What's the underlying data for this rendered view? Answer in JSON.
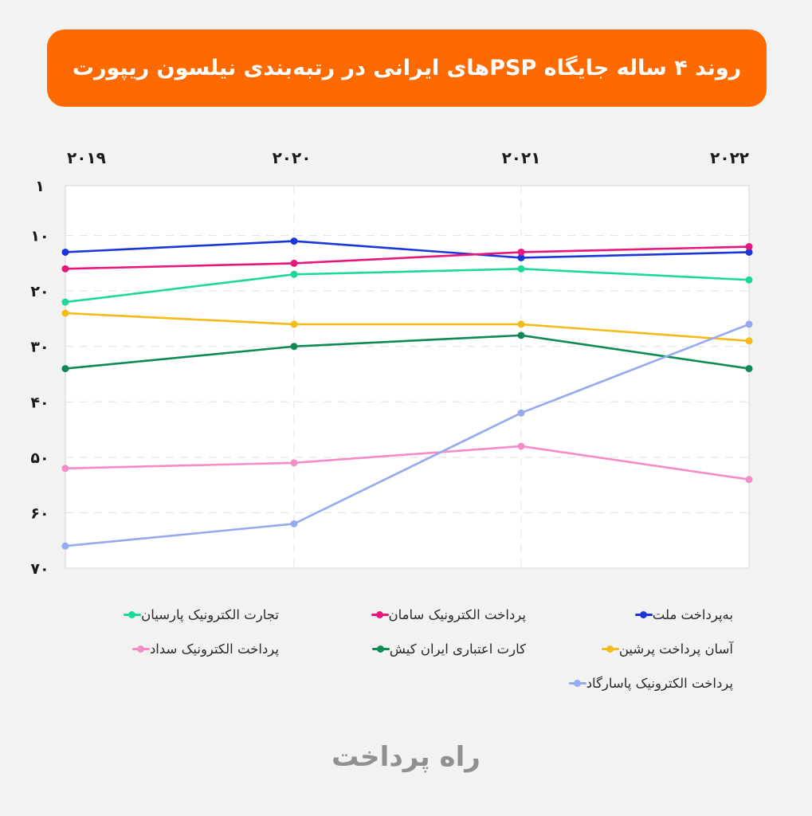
{
  "title": "روند ۴ ساله جایگاه PSPهای ایرانی در رتبه‌بندی نیلسون ریپورت",
  "colors": {
    "banner": "#ff6a00",
    "background": "#f2f2f2",
    "plot_background": "#ffffff",
    "grid": "#e0e0e0"
  },
  "footer_logo": "راه پرداخت",
  "chart_data": {
    "type": "line",
    "x": [
      "۲۰۱۹",
      "۲۰۲۰",
      "۲۰۲۱",
      "۲۰۲۲"
    ],
    "ylim": [
      1,
      70
    ],
    "y_inverted": true,
    "yticks": [
      {
        "value": 1,
        "label": "۱"
      },
      {
        "value": 10,
        "label": "۱۰"
      },
      {
        "value": 20,
        "label": "۲۰"
      },
      {
        "value": 30,
        "label": "۳۰"
      },
      {
        "value": 40,
        "label": "۴۰"
      },
      {
        "value": 50,
        "label": "۵۰"
      },
      {
        "value": 60,
        "label": "۶۰"
      },
      {
        "value": 70,
        "label": "۷۰"
      }
    ],
    "grid": true,
    "legend_position": "bottom",
    "series": [
      {
        "name": "به‌پرداخت ملت",
        "color": "#1a35d8",
        "values": [
          13,
          11,
          14,
          13
        ]
      },
      {
        "name": "پرداخت الکترونیک سامان",
        "color": "#e8177d",
        "values": [
          16,
          15,
          13,
          12
        ]
      },
      {
        "name": "تجارت الکترونیک پارسیان",
        "color": "#1ed89a",
        "values": [
          22,
          17,
          16,
          18
        ]
      },
      {
        "name": "آسان پرداخت پرشین",
        "color": "#f5bb1a",
        "values": [
          24,
          26,
          26,
          29
        ]
      },
      {
        "name": "کارت اعتباری ایران کیش",
        "color": "#0f8a55",
        "values": [
          34,
          30,
          28,
          34
        ]
      },
      {
        "name": "پرداخت الکترونیک سداد",
        "color": "#f58cc8",
        "values": [
          52,
          51,
          48,
          54
        ]
      },
      {
        "name": "پرداخت الکترونیک پاسارگاد",
        "color": "#95aaf0",
        "values": [
          66,
          62,
          42,
          26
        ]
      }
    ]
  }
}
